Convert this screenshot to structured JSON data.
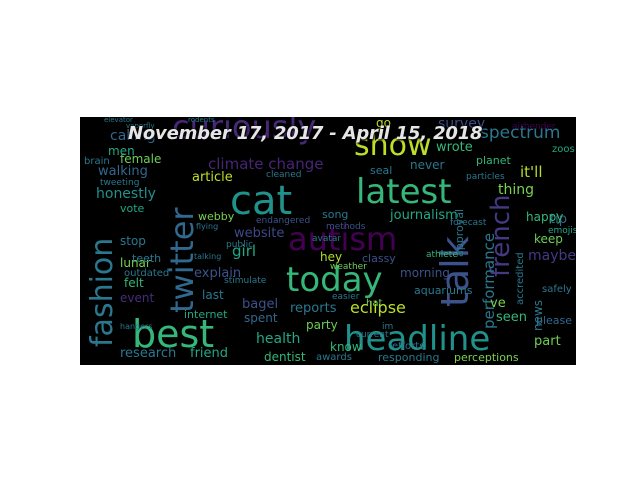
{
  "title": "November 17, 2017 - April 15, 2018",
  "words": [
    {
      "text": "best",
      "color": "#35b779",
      "rotated": false
    },
    {
      "text": "headline",
      "color": "#21918c",
      "rotated": false
    },
    {
      "text": "cat",
      "color": "#21918c",
      "rotated": false
    },
    {
      "text": "autism",
      "color": "#440154",
      "rotated": false
    },
    {
      "text": "latest",
      "color": "#35b779",
      "rotated": false
    },
    {
      "text": "today",
      "color": "#35b779",
      "rotated": false
    },
    {
      "text": "show",
      "color": "#bddf26",
      "rotated": false
    },
    {
      "text": "twitter",
      "color": "#31688e",
      "rotated": true
    },
    {
      "text": "fashion",
      "color": "#2a788e",
      "rotated": true
    },
    {
      "text": "talk",
      "color": "#3b528b",
      "rotated": true
    },
    {
      "text": "french",
      "color": "#443983",
      "rotated": true
    },
    {
      "text": "curiously",
      "color": "#482878",
      "rotated": false
    },
    {
      "text": "climate change",
      "color": "#482475",
      "rotated": false
    },
    {
      "text": "journalism",
      "color": "#22a884",
      "rotated": false
    },
    {
      "text": "performance",
      "color": "#2a788e",
      "rotated": true
    },
    {
      "text": "it'll",
      "color": "#b5de2b",
      "rotated": false
    },
    {
      "text": "thing",
      "color": "#7ad151",
      "rotated": false
    },
    {
      "text": "spectrum",
      "color": "#2a788e",
      "rotated": false
    },
    {
      "text": "survey",
      "color": "#3e4989",
      "rotated": false
    },
    {
      "text": "wrote",
      "color": "#35b779",
      "rotated": false
    },
    {
      "text": "never",
      "color": "#2a788e",
      "rotated": false
    },
    {
      "text": "eclipse",
      "color": "#bddf26",
      "rotated": false
    },
    {
      "text": "reports",
      "color": "#2a788e",
      "rotated": false
    },
    {
      "text": "party",
      "color": "#6ece58",
      "rotated": false
    },
    {
      "text": "health",
      "color": "#22a884",
      "rotated": false
    },
    {
      "text": "bagel",
      "color": "#3b528b",
      "rotated": false
    },
    {
      "text": "last",
      "color": "#2a788e",
      "rotated": false
    },
    {
      "text": "event",
      "color": "#472d7b",
      "rotated": false
    },
    {
      "text": "felt",
      "color": "#35b779",
      "rotated": false
    },
    {
      "text": "lunar",
      "color": "#7ad151",
      "rotated": false
    },
    {
      "text": "stop",
      "color": "#2a788e",
      "rotated": false
    },
    {
      "text": "vote",
      "color": "#22a884",
      "rotated": false
    },
    {
      "text": "honestly",
      "color": "#21918c",
      "rotated": false
    },
    {
      "text": "walking",
      "color": "#31688e",
      "rotated": false
    },
    {
      "text": "female",
      "color": "#6ece58",
      "rotated": false
    },
    {
      "text": "calling",
      "color": "#31688e",
      "rotated": false
    },
    {
      "text": "men",
      "color": "#22a884",
      "rotated": false
    },
    {
      "text": "article",
      "color": "#bddf26",
      "rotated": false
    },
    {
      "text": "website",
      "color": "#3e4989",
      "rotated": false
    },
    {
      "text": "girl",
      "color": "#22a884",
      "rotated": false
    },
    {
      "text": "explain",
      "color": "#3b528b",
      "rotated": false
    },
    {
      "text": "spent",
      "color": "#31688e",
      "rotated": false
    },
    {
      "text": "dentist",
      "color": "#35b779",
      "rotated": false
    },
    {
      "text": "research",
      "color": "#2a788e",
      "rotated": false
    },
    {
      "text": "friend",
      "color": "#22a884",
      "rotated": false
    },
    {
      "text": "know",
      "color": "#35b779",
      "rotated": false
    },
    {
      "text": "responding",
      "color": "#2a788e",
      "rotated": false
    },
    {
      "text": "perceptions",
      "color": "#7ad151",
      "rotated": false
    },
    {
      "text": "part",
      "color": "#6ece58",
      "rotated": false
    },
    {
      "text": "seen",
      "color": "#35b779",
      "rotated": false
    },
    {
      "text": "please",
      "color": "#31688e",
      "rotated": false
    },
    {
      "text": "maybe",
      "color": "#443983",
      "rotated": false
    },
    {
      "text": "keep",
      "color": "#6ece58",
      "rotated": false
    },
    {
      "text": "tip",
      "color": "#31688e",
      "rotated": false
    },
    {
      "text": "happy",
      "color": "#35b779",
      "rotated": false
    },
    {
      "text": "morning",
      "color": "#3b528b",
      "rotated": false
    },
    {
      "text": "hey",
      "color": "#b5de2b",
      "rotated": false
    },
    {
      "text": "song",
      "color": "#2a788e",
      "rotated": false
    },
    {
      "text": "ve",
      "color": "#7ad151",
      "rotated": false
    },
    {
      "text": "news",
      "color": "#2a788e",
      "rotated": true
    },
    {
      "text": "approval",
      "color": "#2a788e",
      "rotated": true
    },
    {
      "text": "accredited",
      "color": "#2a788e",
      "rotated": true
    },
    {
      "text": "aquariums",
      "color": "#2a788e",
      "rotated": false
    },
    {
      "text": "internet",
      "color": "#22a884",
      "rotated": false
    },
    {
      "text": "webby",
      "color": "#7ad151",
      "rotated": false
    },
    {
      "text": "classy",
      "color": "#3b528b",
      "rotated": false
    },
    {
      "text": "seal",
      "color": "#2a788e",
      "rotated": false
    },
    {
      "text": "methods",
      "color": "#3b528b",
      "rotated": false
    },
    {
      "text": "endangered",
      "color": "#3b528b",
      "rotated": false
    },
    {
      "text": "go",
      "color": "#bddf26",
      "rotated": false
    },
    {
      "text": "planet",
      "color": "#35b779",
      "rotated": false
    },
    {
      "text": "efforts",
      "color": "#2a788e",
      "rotated": false
    },
    {
      "text": "awards",
      "color": "#2a788e",
      "rotated": false
    },
    {
      "text": "avatar",
      "color": "#2a788e",
      "rotated": false
    },
    {
      "text": "weather",
      "color": "#6ece58",
      "rotated": false
    },
    {
      "text": "outdated",
      "color": "#2a788e",
      "rotated": false
    },
    {
      "text": "teeth",
      "color": "#2a788e",
      "rotated": false
    },
    {
      "text": "zoos",
      "color": "#22a884",
      "rotated": false
    },
    {
      "text": "emojis",
      "color": "#22a884",
      "rotated": false
    },
    {
      "text": "safely",
      "color": "#2a788e",
      "rotated": false
    },
    {
      "text": "athlete",
      "color": "#35b779",
      "rotated": false
    },
    {
      "text": "forecast",
      "color": "#2a788e",
      "rotated": false
    },
    {
      "text": "current",
      "color": "#2a788e",
      "rotated": false
    },
    {
      "text": "brain",
      "color": "#2a788e",
      "rotated": false
    },
    {
      "text": "tweeting",
      "color": "#2a788e",
      "rotated": false
    },
    {
      "text": "public",
      "color": "#2a788e",
      "rotated": false
    },
    {
      "text": "stimulate",
      "color": "#2a788e",
      "rotated": false
    },
    {
      "text": "easier",
      "color": "#2a788e",
      "rotated": false
    },
    {
      "text": "hat",
      "color": "#7ad151",
      "rotated": false
    },
    {
      "text": "im",
      "color": "#2a788e",
      "rotated": false
    },
    {
      "text": "airbender",
      "color": "#440154",
      "rotated": false
    },
    {
      "text": "particles",
      "color": "#2a788e",
      "rotated": false
    },
    {
      "text": "cleaned",
      "color": "#2a788e",
      "rotated": false
    },
    {
      "text": "flying",
      "color": "#2a788e",
      "rotated": false
    },
    {
      "text": "talking",
      "color": "#2a788e",
      "rotated": false
    },
    {
      "text": "hangers",
      "color": "#2a788e",
      "rotated": false
    },
    {
      "text": "rodents",
      "color": "#2a788e",
      "rotated": false
    },
    {
      "text": "vaporfly",
      "color": "#2a788e",
      "rotated": false
    },
    {
      "text": "elevator",
      "color": "#2a788e",
      "rotated": false
    }
  ]
}
